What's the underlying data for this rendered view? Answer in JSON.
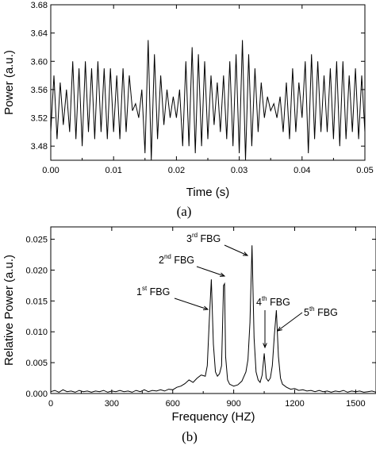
{
  "chart_data": [
    {
      "type": "line",
      "panel_label": "(a)",
      "xlabel": "Time (s)",
      "ylabel": "Power (a.u.)",
      "xlim": [
        0.0,
        0.05
      ],
      "ylim": [
        3.46,
        3.68
      ],
      "x_ticks": [
        "0.00",
        "0.01",
        "0.02",
        "0.03",
        "0.04",
        "0.05"
      ],
      "x_tick_values": [
        0.0,
        0.01,
        0.02,
        0.03,
        0.04,
        0.05
      ],
      "y_ticks": [
        "3.48",
        "3.52",
        "3.56",
        "3.60",
        "3.64",
        "3.68"
      ],
      "y_tick_values": [
        3.48,
        3.52,
        3.56,
        3.6,
        3.64,
        3.68
      ],
      "grid": false,
      "series": [
        {
          "x": [
            0.0,
            0.0005,
            0.001,
            0.0015,
            0.002,
            0.0025,
            0.003,
            0.0035,
            0.004,
            0.0045,
            0.005,
            0.0055,
            0.006,
            0.0065,
            0.007,
            0.0075,
            0.008,
            0.0085,
            0.009,
            0.0095,
            0.01,
            0.0105,
            0.011,
            0.0115,
            0.012,
            0.0125,
            0.013,
            0.0135,
            0.014,
            0.0145,
            0.015,
            0.0155,
            0.016,
            0.0165,
            0.017,
            0.0175,
            0.018,
            0.0185,
            0.019,
            0.0195,
            0.02,
            0.0205,
            0.021,
            0.0215,
            0.022,
            0.0225,
            0.023,
            0.0235,
            0.024,
            0.0245,
            0.025,
            0.0255,
            0.026,
            0.0265,
            0.027,
            0.0275,
            0.028,
            0.0285,
            0.029,
            0.0295,
            0.03,
            0.0305,
            0.031,
            0.0315,
            0.032,
            0.0325,
            0.033,
            0.0335,
            0.034,
            0.0345,
            0.035,
            0.0355,
            0.036,
            0.0365,
            0.037,
            0.0375,
            0.038,
            0.0385,
            0.039,
            0.0395,
            0.04,
            0.0405,
            0.041,
            0.0415,
            0.042,
            0.0425,
            0.043,
            0.0435,
            0.044,
            0.0445,
            0.045,
            0.0455,
            0.046,
            0.0465,
            0.047,
            0.0475,
            0.048,
            0.0485,
            0.049,
            0.0495,
            0.05
          ],
          "y": [
            3.5,
            3.58,
            3.49,
            3.57,
            3.51,
            3.56,
            3.5,
            3.6,
            3.49,
            3.59,
            3.48,
            3.6,
            3.5,
            3.59,
            3.49,
            3.6,
            3.5,
            3.59,
            3.49,
            3.59,
            3.5,
            3.58,
            3.49,
            3.59,
            3.5,
            3.58,
            3.53,
            3.54,
            3.52,
            3.56,
            3.47,
            3.63,
            3.46,
            3.61,
            3.49,
            3.58,
            3.51,
            3.56,
            3.52,
            3.55,
            3.52,
            3.56,
            3.48,
            3.6,
            3.48,
            3.62,
            3.47,
            3.61,
            3.48,
            3.6,
            3.49,
            3.58,
            3.51,
            3.57,
            3.5,
            3.58,
            3.49,
            3.6,
            3.48,
            3.61,
            3.47,
            3.63,
            3.46,
            3.61,
            3.48,
            3.59,
            3.5,
            3.57,
            3.52,
            3.55,
            3.53,
            3.54,
            3.52,
            3.55,
            3.5,
            3.57,
            3.49,
            3.59,
            3.5,
            3.57,
            3.52,
            3.6,
            3.47,
            3.61,
            3.49,
            3.6,
            3.5,
            3.58,
            3.5,
            3.59,
            3.49,
            3.6,
            3.48,
            3.6,
            3.49,
            3.58,
            3.5,
            3.59,
            3.49,
            3.58,
            3.5
          ]
        }
      ]
    },
    {
      "type": "line",
      "panel_label": "(b)",
      "xlabel": "Frequency (HZ)",
      "ylabel": "Relative Power (a.u.)",
      "xlim": [
        0,
        1600
      ],
      "ylim": [
        0.0,
        0.027
      ],
      "x_ticks": [
        "0",
        "300",
        "600",
        "900",
        "1200",
        "1500"
      ],
      "x_tick_values": [
        0,
        300,
        600,
        900,
        1200,
        1500
      ],
      "y_ticks": [
        "0.000",
        "0.005",
        "0.010",
        "0.015",
        "0.020",
        "0.025"
      ],
      "y_tick_values": [
        0.0,
        0.005,
        0.01,
        0.015,
        0.02,
        0.025
      ],
      "grid": false,
      "annotations": [
        {
          "base": "1",
          "sup": "st",
          "tail": " FBG",
          "x": 790,
          "y": 0.0175
        },
        {
          "base": "2",
          "sup": "nd",
          "tail": " FBG",
          "x": 855,
          "y": 0.0182
        },
        {
          "base": "3",
          "sup": "rd",
          "tail": " FBG",
          "x": 990,
          "y": 0.0235
        },
        {
          "base": "4",
          "sup": "th",
          "tail": " FBG",
          "x": 1050,
          "y": 0.0075
        },
        {
          "base": "5",
          "sup": "th",
          "tail": " FBG",
          "x": 1110,
          "y": 0.0135
        }
      ],
      "series": [
        {
          "x": [
            0,
            20,
            40,
            60,
            80,
            100,
            120,
            140,
            160,
            180,
            200,
            220,
            240,
            260,
            280,
            300,
            320,
            340,
            360,
            380,
            400,
            420,
            440,
            460,
            480,
            500,
            520,
            540,
            560,
            580,
            600,
            620,
            640,
            660,
            680,
            700,
            720,
            740,
            760,
            770,
            780,
            790,
            800,
            810,
            820,
            830,
            840,
            850,
            855,
            860,
            870,
            880,
            900,
            920,
            940,
            960,
            970,
            980,
            990,
            1000,
            1010,
            1020,
            1030,
            1040,
            1050,
            1060,
            1070,
            1080,
            1090,
            1100,
            1110,
            1120,
            1130,
            1140,
            1160,
            1180,
            1200,
            1220,
            1240,
            1260,
            1280,
            1300,
            1320,
            1340,
            1360,
            1380,
            1400,
            1420,
            1440,
            1460,
            1480,
            1500,
            1520,
            1540,
            1560,
            1580,
            1600
          ],
          "y": [
            0.0003,
            0.0005,
            0.0002,
            0.0006,
            0.0003,
            0.0004,
            0.0002,
            0.0005,
            0.0003,
            0.0004,
            0.0002,
            0.0004,
            0.0003,
            0.0005,
            0.0002,
            0.0004,
            0.0003,
            0.0005,
            0.0003,
            0.0004,
            0.0002,
            0.0005,
            0.0003,
            0.0006,
            0.0003,
            0.0005,
            0.0004,
            0.0006,
            0.0004,
            0.0007,
            0.0006,
            0.001,
            0.0012,
            0.0016,
            0.0022,
            0.0018,
            0.0025,
            0.003,
            0.0028,
            0.0045,
            0.012,
            0.0185,
            0.008,
            0.0035,
            0.0028,
            0.0032,
            0.0045,
            0.0175,
            0.0178,
            0.006,
            0.0022,
            0.0015,
            0.0012,
            0.0014,
            0.002,
            0.0035,
            0.0055,
            0.0115,
            0.024,
            0.009,
            0.0035,
            0.0022,
            0.0018,
            0.003,
            0.0065,
            0.0025,
            0.002,
            0.0025,
            0.0045,
            0.0095,
            0.0135,
            0.006,
            0.0025,
            0.0015,
            0.001,
            0.0007,
            0.0008,
            0.0005,
            0.0006,
            0.0004,
            0.0005,
            0.0003,
            0.0005,
            0.0003,
            0.0004,
            0.0002,
            0.0004,
            0.0003,
            0.0005,
            0.0002,
            0.0004,
            0.0003,
            0.0004,
            0.0002,
            0.0003,
            0.0004,
            0.0002
          ]
        }
      ]
    }
  ]
}
